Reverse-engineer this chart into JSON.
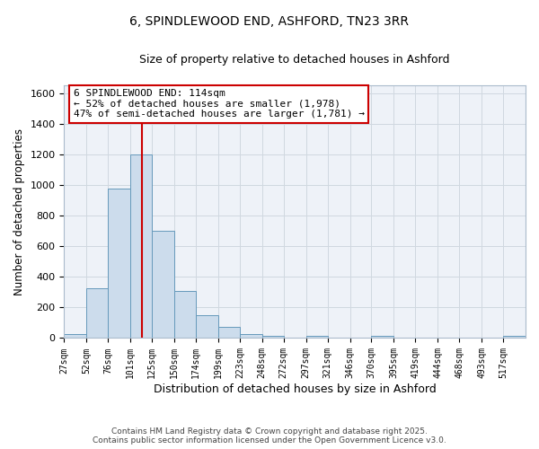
{
  "title": "6, SPINDLEWOOD END, ASHFORD, TN23 3RR",
  "subtitle": "Size of property relative to detached houses in Ashford",
  "xlabel": "Distribution of detached houses by size in Ashford",
  "ylabel": "Number of detached properties",
  "bar_color": "#ccdcec",
  "bar_edge_color": "#6699bb",
  "grid_color": "#d0d8e0",
  "bg_color": "#eef2f8",
  "red_line_x": 114,
  "annotation_line1": "6 SPINDLEWOOD END: 114sqm",
  "annotation_line2": "← 52% of detached houses are smaller (1,978)",
  "annotation_line3": "47% of semi-detached houses are larger (1,781) →",
  "annotation_box_color": "#ffffff",
  "annotation_box_edge": "#cc0000",
  "bins": [
    27,
    52,
    76,
    101,
    125,
    150,
    174,
    199,
    223,
    248,
    272,
    297,
    321,
    346,
    370,
    395,
    419,
    444,
    468,
    493,
    517,
    542
  ],
  "counts": [
    25,
    325,
    975,
    1200,
    700,
    310,
    150,
    75,
    25,
    15,
    0,
    15,
    0,
    0,
    15,
    0,
    0,
    0,
    0,
    0,
    15
  ],
  "ylim": [
    0,
    1650
  ],
  "yticks": [
    0,
    200,
    400,
    600,
    800,
    1000,
    1200,
    1400,
    1600
  ],
  "footer_line1": "Contains HM Land Registry data © Crown copyright and database right 2025.",
  "footer_line2": "Contains public sector information licensed under the Open Government Licence v3.0."
}
